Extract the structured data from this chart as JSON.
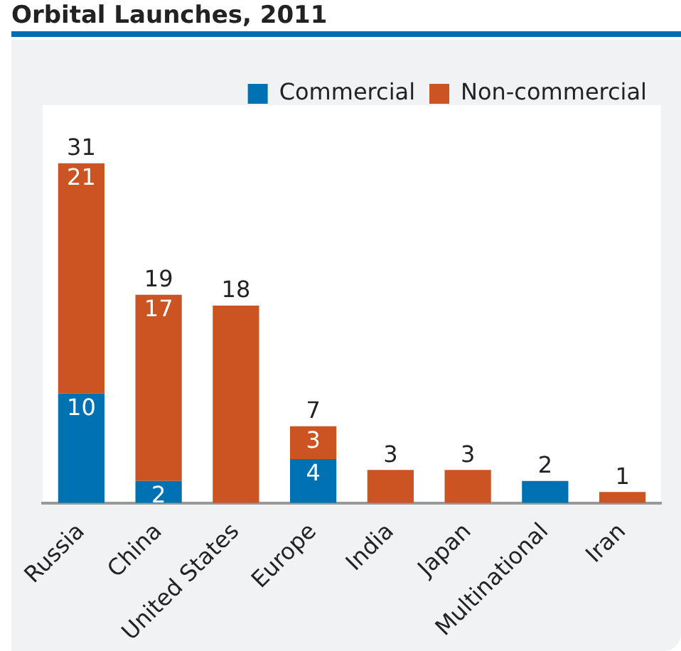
{
  "chart_data": {
    "type": "bar",
    "title": "Orbital Launches, 2011",
    "stacked": true,
    "legend": "top right",
    "categories": [
      "Russia",
      "China",
      "United States",
      "Europe",
      "India",
      "Japan",
      "Multinational",
      "Iran"
    ],
    "series": [
      {
        "name": "Commercial",
        "color": "#0071b3",
        "values": [
          10,
          2,
          0,
          4,
          0,
          0,
          2,
          0
        ],
        "value_labels": [
          "10",
          "2",
          null,
          "4",
          null,
          null,
          null,
          null
        ]
      },
      {
        "name": "Non-commercial",
        "color": "#cc5422",
        "values": [
          21,
          17,
          18,
          3,
          3,
          3,
          0,
          1
        ],
        "value_labels": [
          "21",
          "17",
          null,
          "3",
          null,
          null,
          null,
          null
        ]
      }
    ],
    "totals": [
      "31",
      "19",
      "18",
      "7",
      "3",
      "3",
      "2",
      "1"
    ]
  }
}
